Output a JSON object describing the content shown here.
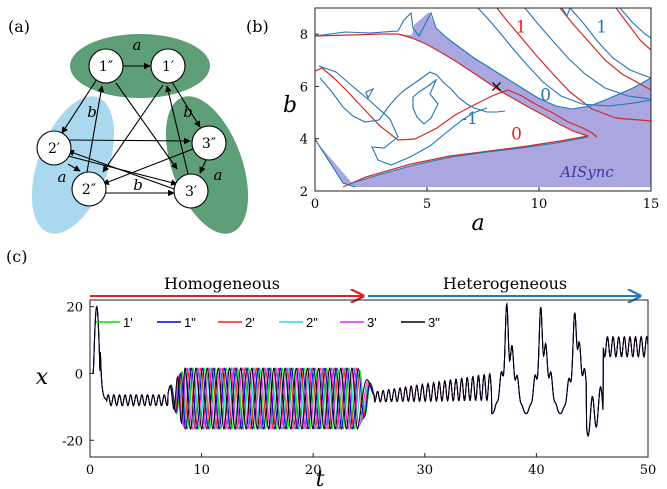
{
  "panels": {
    "a": {
      "label": "(a)",
      "nodes": [
        {
          "id": "1pp",
          "label": "1″",
          "cluster": "green"
        },
        {
          "id": "1p",
          "label": "1′",
          "cluster": "green"
        },
        {
          "id": "2p",
          "label": "2′",
          "cluster": "blue"
        },
        {
          "id": "2pp",
          "label": "2″",
          "cluster": "blue"
        },
        {
          "id": "3pp",
          "label": "3″",
          "cluster": "green"
        },
        {
          "id": "3p",
          "label": "3′",
          "cluster": "green"
        }
      ],
      "edge_labels": {
        "top_a": "a",
        "left_b": "b",
        "right_b": "b",
        "left_a": "a",
        "right_a": "a",
        "bottom_b": "b"
      }
    },
    "b": {
      "label": "(b)",
      "xlabel": "a",
      "ylabel": "b",
      "annotation": "AISync",
      "contour_labels": [
        {
          "text": "1",
          "color": "#d62728",
          "x": 9.2,
          "y": 8.3
        },
        {
          "text": "1",
          "color": "#1f77b4",
          "x": 12.8,
          "y": 8.3
        },
        {
          "text": "0",
          "color": "#1f77b4",
          "x": 10.3,
          "y": 5.7
        },
        {
          "text": "0",
          "color": "#d62728",
          "x": 9.0,
          "y": 4.2
        },
        {
          "text": "-1",
          "color": "#1f77b4",
          "x": 6.9,
          "y": 4.8
        }
      ],
      "marker": {
        "x": 8.1,
        "y": 6.0
      }
    },
    "c": {
      "label": "(c)",
      "regime_left": "Homogeneous",
      "regime_right": "Heterogeneous",
      "xlabel": "t",
      "ylabel": "x"
    }
  },
  "colors": {
    "green": "#5f9f78",
    "blue": "#aad8ee",
    "shade": "#aaa6e0",
    "red": "#d62728",
    "steel": "#1f77b4",
    "arrow_red": "#e02020",
    "arrow_blue": "#2878b5"
  },
  "chart_data": [
    {
      "type": "contour",
      "panel": "b",
      "xlim": [
        0,
        15
      ],
      "ylim": [
        2,
        9
      ],
      "xticks": [
        0,
        5,
        10,
        15
      ],
      "yticks": [
        2,
        4,
        6,
        8
      ],
      "xlabel": "a",
      "ylabel": "b",
      "legend": null
    },
    {
      "type": "line",
      "panel": "c",
      "xlim": [
        0,
        50
      ],
      "ylim": [
        -25,
        22
      ],
      "xticks": [
        0,
        10,
        20,
        30,
        40,
        50
      ],
      "yticks": [
        -20,
        0,
        20
      ],
      "xlabel": "t",
      "ylabel": "x",
      "legend_position": "top-left",
      "series": [
        {
          "name": "1'",
          "color": "#00dd00"
        },
        {
          "name": "1\"",
          "color": "#0000cc"
        },
        {
          "name": "2'",
          "color": "#ee2222"
        },
        {
          "name": "2\"",
          "color": "#22dddd"
        },
        {
          "name": "3'",
          "color": "#ee22ee"
        },
        {
          "name": "3\"",
          "color": "#000000"
        }
      ]
    }
  ]
}
